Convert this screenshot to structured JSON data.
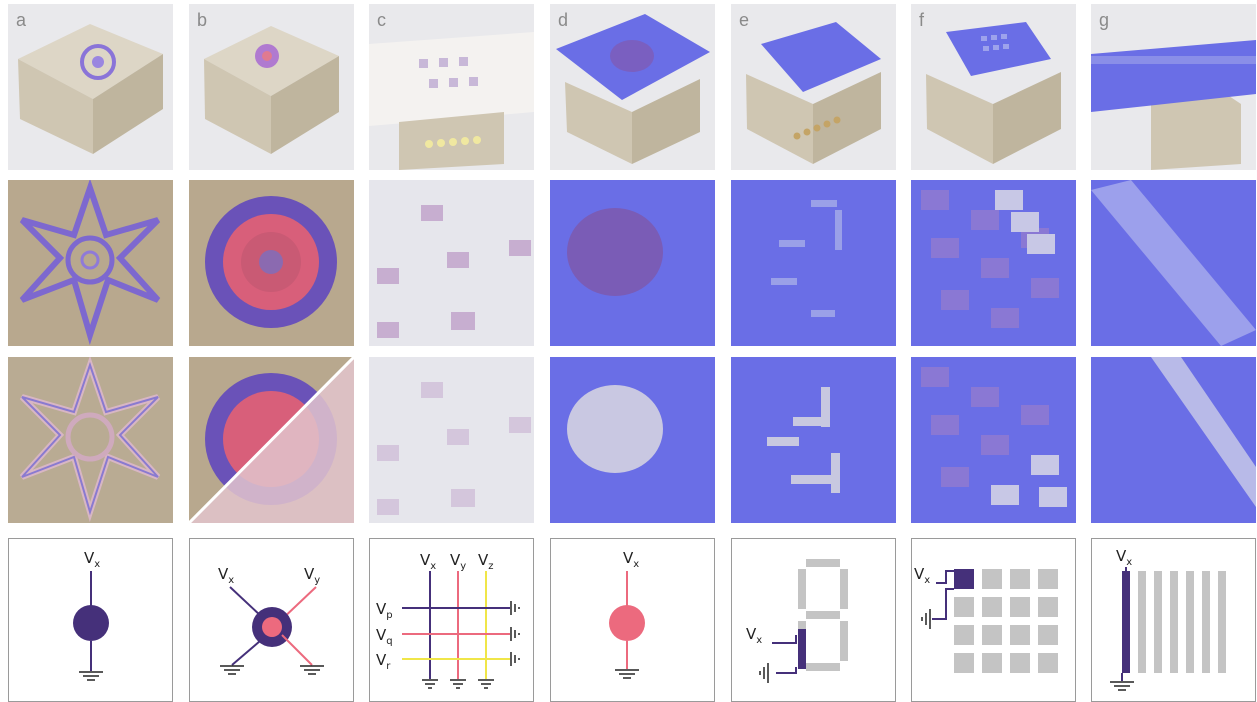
{
  "panels": [
    {
      "letter": "a",
      "diagram": {
        "labels": [
          "V",
          "x"
        ]
      }
    },
    {
      "letter": "b",
      "diagram": {
        "labels": [
          "V",
          "x",
          "V",
          "y"
        ]
      }
    },
    {
      "letter": "c",
      "diagram": {
        "labels": [
          "V",
          "x",
          "V",
          "y",
          "V",
          "z",
          "V",
          "p",
          "V",
          "q",
          "V",
          "r"
        ]
      }
    },
    {
      "letter": "d",
      "diagram": {
        "labels": [
          "V",
          "x"
        ]
      }
    },
    {
      "letter": "e",
      "diagram": {
        "labels": [
          "V",
          "x"
        ]
      }
    },
    {
      "letter": "f",
      "diagram": {
        "labels": [
          "V",
          "x"
        ]
      }
    },
    {
      "letter": "g",
      "diagram": {
        "labels": [
          "V",
          "x"
        ]
      }
    }
  ],
  "colors": {
    "purple": "#45307a",
    "pink": "#ec6a7e",
    "yellow": "#f0e648",
    "gray": "#c4c4c4",
    "fabric_blue": "#6a6ee6",
    "cardboard": "#c9bca4",
    "box_wood": "#e2dccc"
  }
}
